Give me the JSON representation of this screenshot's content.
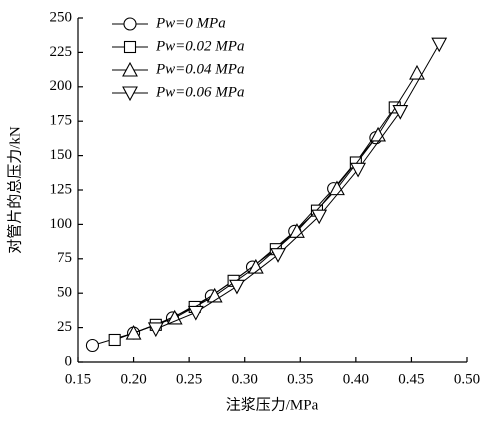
{
  "chart_data": {
    "type": "line",
    "x_label": "注浆压力/MPa",
    "y_label": "对管片的总压力/kN",
    "xlim": [
      0.15,
      0.5
    ],
    "xticks": [
      {
        "value": 0.15,
        "label": "0.15"
      },
      {
        "value": 0.2,
        "label": "0.20"
      },
      {
        "value": 0.25,
        "label": "0.25"
      },
      {
        "value": 0.3,
        "label": "0.30"
      },
      {
        "value": 0.35,
        "label": "0.35"
      },
      {
        "value": 0.4,
        "label": "0.40"
      },
      {
        "value": 0.45,
        "label": "0.45"
      },
      {
        "value": 0.5,
        "label": "0.50"
      }
    ],
    "ylim": [
      0,
      250
    ],
    "yticks": [
      0,
      25,
      50,
      75,
      100,
      125,
      150,
      175,
      200,
      225,
      250
    ],
    "legend": "top-left",
    "series": [
      {
        "name": "Pw=0 MPa",
        "color": "#000000",
        "marker": "circle",
        "x": [
          0.163,
          0.2,
          0.235,
          0.27,
          0.307,
          0.345,
          0.38,
          0.418
        ],
        "values": [
          12,
          21,
          32,
          48,
          69,
          95,
          126,
          163
        ]
      },
      {
        "name": "Pw=0.02 MPa",
        "color": "#000000",
        "marker": "square",
        "x": [
          0.183,
          0.22,
          0.255,
          0.29,
          0.328,
          0.365,
          0.4,
          0.435
        ],
        "values": [
          16,
          27,
          40,
          59,
          82,
          110,
          145,
          185
        ]
      },
      {
        "name": "Pw=0.04 MPa",
        "color": "#000000",
        "marker": "triangle-up",
        "x": [
          0.2,
          0.237,
          0.273,
          0.31,
          0.347,
          0.383,
          0.42,
          0.455
        ],
        "values": [
          21,
          32,
          48,
          69,
          95,
          126,
          165,
          210
        ]
      },
      {
        "name": "Pw=0.06 MPa",
        "color": "#000000",
        "marker": "triangle-down",
        "x": [
          0.22,
          0.256,
          0.293,
          0.33,
          0.367,
          0.402,
          0.44,
          0.475
        ],
        "values": [
          24,
          36,
          55,
          78,
          106,
          140,
          182,
          231
        ]
      }
    ]
  }
}
